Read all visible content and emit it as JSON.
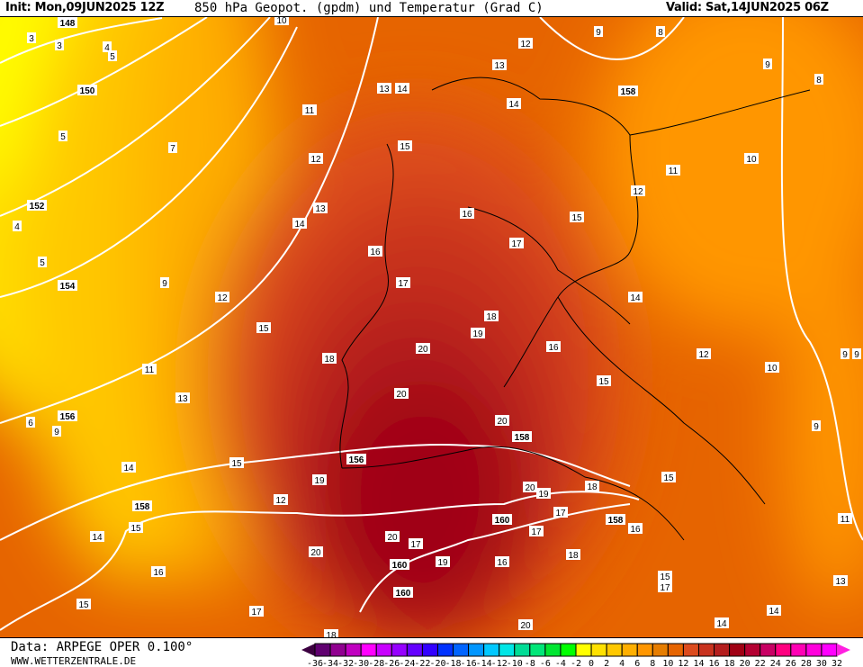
{
  "header": {
    "init": "Init: Mon,09JUN2025 12Z",
    "title": "850 hPa Geopot. (gpdm) und Temperatur (Grad C)",
    "valid": "Valid: Sat,14JUN2025 06Z"
  },
  "footer": {
    "source": "Data: ARPEGE OPER 0.100°",
    "website": "WWW.WETTERZENTRALE.DE"
  },
  "colorbar": {
    "ticks": [
      "-36",
      "-34",
      "-32",
      "-30",
      "-28",
      "-26",
      "-24",
      "-22",
      "-20",
      "-18",
      "-16",
      "-14",
      "-12",
      "-10",
      "-8",
      "-6",
      "-4",
      "-2",
      "0",
      "2",
      "4",
      "6",
      "8",
      "10",
      "12",
      "14",
      "16",
      "18",
      "20",
      "22",
      "24",
      "26",
      "28",
      "30",
      "32"
    ],
    "low_color": "#3c0040",
    "high_color": "#ff20e0",
    "colors": [
      "#600070",
      "#900090",
      "#c000c0",
      "#ff00ff",
      "#c800ff",
      "#9600ff",
      "#6400ff",
      "#3200ff",
      "#0032ff",
      "#0064ff",
      "#0096ff",
      "#00c8ff",
      "#00e6e6",
      "#00dc96",
      "#00e678",
      "#00e632",
      "#00ff00",
      "#ffff00",
      "#ffe100",
      "#ffc800",
      "#ffaf00",
      "#ff9600",
      "#e67d00",
      "#e66400",
      "#dc4b1e",
      "#c8321e",
      "#b41e1e",
      "#a00014",
      "#b40032",
      "#c80064",
      "#ff0080",
      "#ff00b4",
      "#ff00dc",
      "#ff00ff"
    ]
  },
  "geopotential_labels": [
    "148",
    "150",
    "152",
    "154",
    "156",
    "158",
    "156",
    "158",
    "158",
    "160",
    "160",
    "160",
    "158"
  ],
  "temperature_labels": [
    "3",
    "3",
    "4",
    "5",
    "5",
    "7",
    "4",
    "5",
    "9",
    "6",
    "9",
    "11",
    "13",
    "14",
    "12",
    "13",
    "14",
    "12",
    "15",
    "11",
    "13",
    "14",
    "15",
    "19",
    "12",
    "15",
    "14",
    "16",
    "20",
    "17",
    "15",
    "10",
    "12",
    "13",
    "14",
    "15",
    "16",
    "16",
    "17",
    "17",
    "15",
    "12",
    "11",
    "10",
    "9",
    "9",
    "8",
    "8",
    "14",
    "18",
    "19",
    "20",
    "16",
    "18",
    "12",
    "10",
    "15",
    "20",
    "20",
    "15",
    "20",
    "19",
    "18",
    "17",
    "17",
    "16",
    "18",
    "20",
    "17",
    "19",
    "16",
    "15",
    "17",
    "14",
    "14",
    "13",
    "11",
    "9",
    "9",
    "9",
    "20",
    "18"
  ]
}
